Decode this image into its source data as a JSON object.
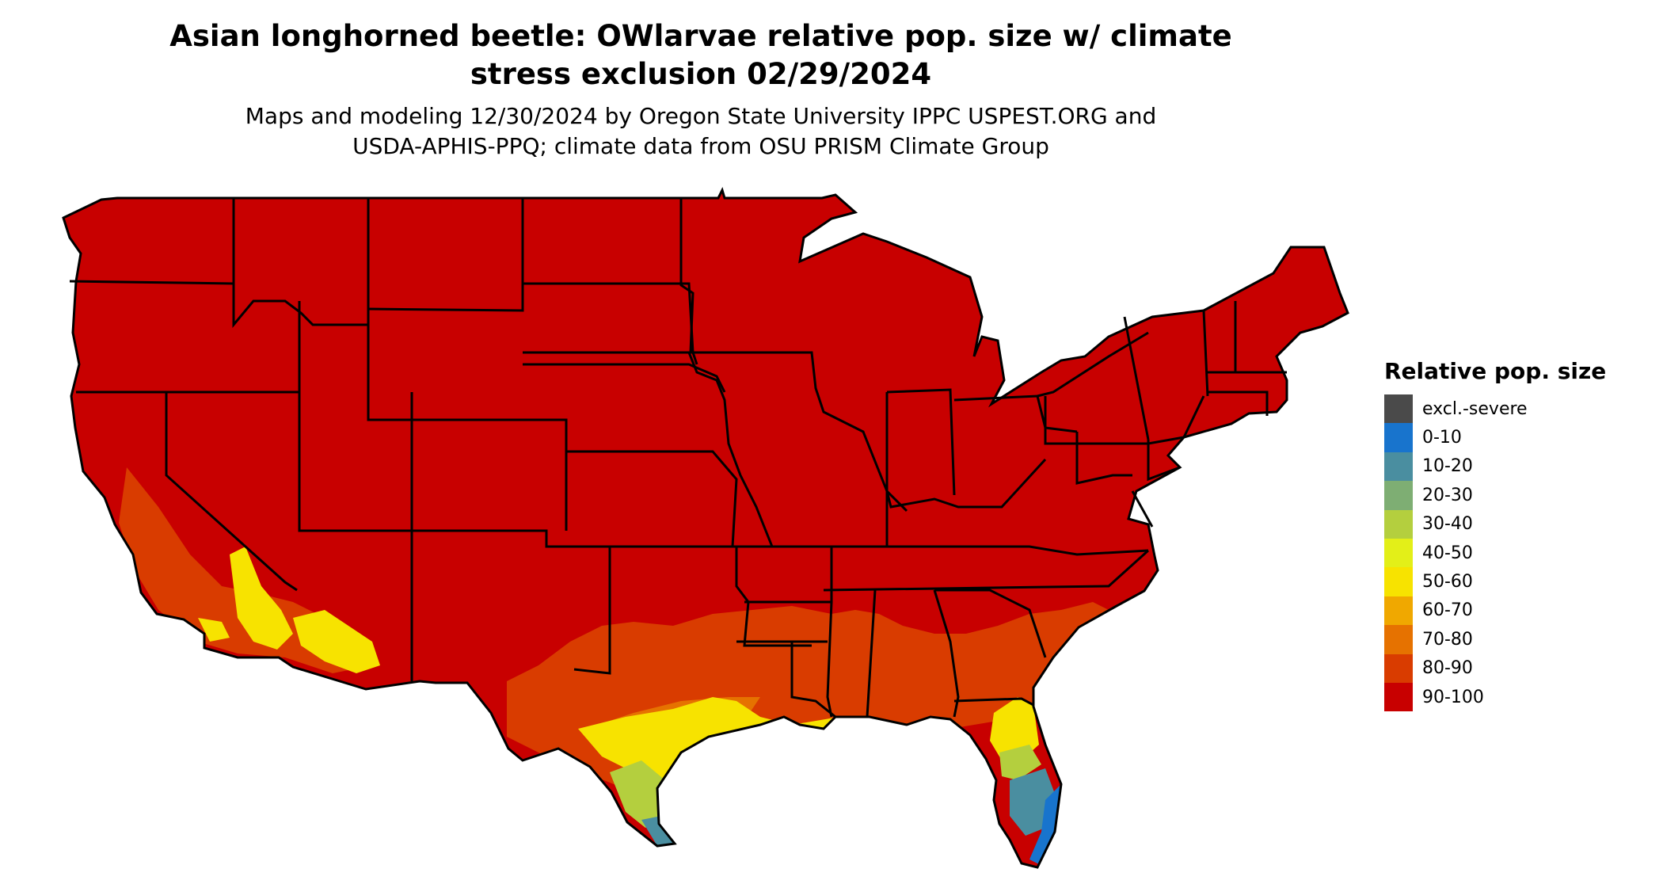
{
  "header": {
    "title_line1": "Asian longhorned beetle: OWlarvae relative pop. size w/ climate",
    "title_line2": "stress exclusion 02/29/2024",
    "subtitle_line1": "Maps and modeling 12/30/2024 by Oregon State University IPPC USPEST.ORG and",
    "subtitle_line2": "USDA-APHIS-PPQ; climate data from OSU PRISM Climate Group"
  },
  "legend": {
    "title": "Relative pop. size",
    "items": [
      {
        "label": "excl.-severe",
        "color": "#4a4a4a"
      },
      {
        "label": "0-10",
        "color": "#1874cd"
      },
      {
        "label": "10-20",
        "color": "#4a8ea0"
      },
      {
        "label": "20-30",
        "color": "#7eae73"
      },
      {
        "label": "30-40",
        "color": "#b4cf3e"
      },
      {
        "label": "40-50",
        "color": "#e3ef18"
      },
      {
        "label": "50-60",
        "color": "#f7e300"
      },
      {
        "label": "60-70",
        "color": "#f0a800"
      },
      {
        "label": "70-80",
        "color": "#e67200"
      },
      {
        "label": "80-90",
        "color": "#d93c00"
      },
      {
        "label": "90-100",
        "color": "#c80000"
      }
    ]
  },
  "map": {
    "region": "Contiguous United States",
    "base_color": "#c80000"
  }
}
